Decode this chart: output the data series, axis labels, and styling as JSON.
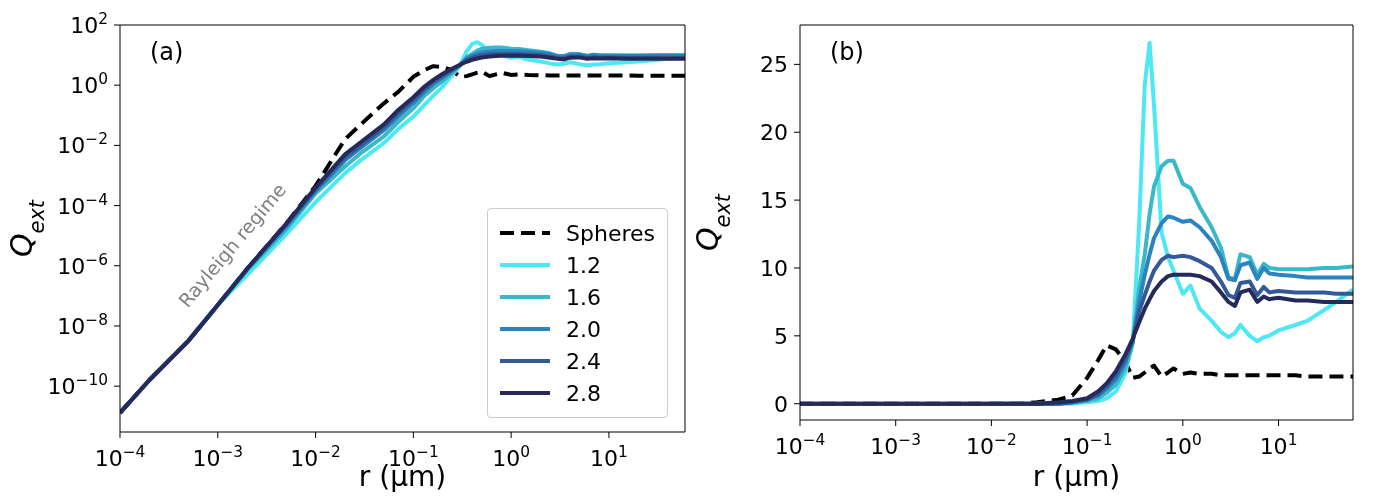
{
  "chart_data": [
    {
      "type": "line",
      "xlabel": "r (μm)",
      "ylabel": "Q$_{ext}$",
      "annotations": [
        "(a)",
        "Rayleigh regime"
      ],
      "log": "xy",
      "legend": "bottom right",
      "x": [
        0.0001,
        0.0002,
        0.0005,
        0.001,
        0.002,
        0.005,
        0.01,
        0.02,
        0.03,
        0.05,
        0.07,
        0.1,
        0.13,
        0.16,
        0.2,
        0.25,
        0.3,
        0.35,
        0.4,
        0.45,
        0.5,
        0.6,
        0.7,
        0.8,
        1,
        1.2,
        1.5,
        2,
        2.5,
        3,
        3.5,
        4,
        5,
        6,
        7,
        8,
        10,
        15,
        20,
        30,
        40,
        60
      ],
      "series": [
        {
          "name": "Spheres",
          "color": "#000000",
          "line_style": "dashed",
          "values": [
            1.3e-11,
            1.6e-10,
            3.2e-09,
            5e-08,
            8e-07,
            2.5e-05,
            0.00045,
            0.016,
            0.055,
            0.25,
            0.6,
            1.9,
            3.2,
            4.3,
            3.95,
            3.1,
            1.9,
            2.0,
            2.3,
            2.6,
            2.8,
            2.0,
            2.3,
            2.6,
            2.2,
            2.3,
            2.2,
            2.15,
            2.1,
            2.1,
            2.1,
            2.1,
            2.1,
            2.1,
            2.1,
            2.1,
            2.1,
            2.1,
            2.05,
            2.05,
            2.05,
            2.05
          ]
        },
        {
          "name": "1.2",
          "color": "#4de8f4",
          "values": [
            null,
            null,
            3.2e-09,
            5e-08,
            5e-07,
            1.1e-05,
            0.00013,
            0.0012,
            0.0035,
            0.012,
            0.035,
            0.09,
            0.22,
            0.45,
            0.9,
            2.2,
            4.5,
            13.3,
            23.5,
            26.6,
            22.0,
            12.6,
            10.8,
            9.8,
            8.1,
            8.7,
            7.0,
            6.1,
            5.3,
            4.9,
            5.2,
            5.8,
            5.0,
            4.6,
            4.9,
            5.0,
            5.4,
            5.8,
            6.1,
            6.9,
            7.5,
            8.4
          ]
        },
        {
          "name": "1.6",
          "color": "#3bb8c8",
          "values": [
            1.3e-11,
            1.6e-10,
            3.2e-09,
            5e-08,
            7e-07,
            1.6e-05,
            0.00025,
            0.002,
            0.006,
            0.02,
            0.06,
            0.17,
            0.45,
            0.8,
            1.4,
            2.6,
            4.5,
            8.5,
            11.0,
            14.0,
            16.0,
            17.5,
            17.9,
            17.9,
            16.2,
            15.9,
            14.5,
            13.0,
            11.5,
            9.3,
            9.2,
            11.0,
            10.8,
            9.5,
            10.3,
            10.0,
            9.9,
            9.9,
            9.9,
            10.0,
            10.0,
            10.1
          ]
        },
        {
          "name": "2.0",
          "color": "#2a84c0",
          "values": [
            1.3e-11,
            1.6e-10,
            3.2e-09,
            5e-08,
            8e-07,
            2e-05,
            0.0003,
            0.0032,
            0.009,
            0.032,
            0.09,
            0.26,
            0.6,
            1.1,
            1.8,
            3.0,
            4.6,
            7.5,
            9.5,
            11.0,
            12.2,
            13.3,
            13.8,
            13.7,
            13.4,
            13.5,
            13.0,
            12.0,
            10.8,
            9.2,
            9.1,
            10.2,
            10.4,
            9.2,
            10.0,
            9.6,
            9.5,
            9.4,
            9.3,
            9.3,
            9.3,
            9.3
          ]
        },
        {
          "name": "2.4",
          "color": "#345996",
          "values": [
            1.3e-11,
            1.6e-10,
            3.2e-09,
            5e-08,
            8e-07,
            2.3e-05,
            0.00035,
            0.004,
            0.011,
            0.04,
            0.12,
            0.33,
            0.75,
            1.3,
            2.1,
            3.3,
            4.7,
            6.8,
            8.0,
            9.0,
            9.8,
            10.6,
            10.9,
            10.8,
            10.9,
            10.8,
            10.5,
            10.0,
            9.0,
            8.0,
            7.8,
            8.9,
            9.0,
            8.0,
            8.6,
            8.2,
            8.3,
            8.2,
            8.2,
            8.2,
            8.1,
            8.1
          ]
        },
        {
          "name": "2.8",
          "color": "#262a5a",
          "values": [
            1.3e-11,
            1.6e-10,
            3.2e-09,
            5e-08,
            8e-07,
            2.5e-05,
            0.0004,
            0.005,
            0.014,
            0.05,
            0.15,
            0.4,
            0.9,
            1.5,
            2.4,
            3.6,
            4.8,
            6.0,
            7.0,
            7.7,
            8.3,
            9.0,
            9.4,
            9.5,
            9.5,
            9.5,
            9.4,
            9.0,
            8.2,
            7.5,
            7.2,
            8.2,
            8.4,
            7.5,
            7.9,
            7.7,
            7.8,
            7.6,
            7.6,
            7.5,
            7.5,
            7.5
          ]
        }
      ],
      "xlim": [
        0.0001,
        60
      ],
      "ylim": [
        3e-12,
        100
      ],
      "xticks": [
        {
          "value": 0.0001,
          "label": "10$^{−4}$"
        },
        {
          "value": 0.001,
          "label": "10$^{−3}$"
        },
        {
          "value": 0.01,
          "label": "10$^{−2}$"
        },
        {
          "value": 0.1,
          "label": "10$^{−1}$"
        },
        {
          "value": 1,
          "label": "10$^{0}$"
        },
        {
          "value": 10,
          "label": "10$^{1}$"
        }
      ],
      "yticks": [
        {
          "value": 1e-10,
          "label": "10$^{−10}$"
        },
        {
          "value": 1e-08,
          "label": "10$^{−8}$"
        },
        {
          "value": 1e-06,
          "label": "10$^{−6}$"
        },
        {
          "value": 0.0001,
          "label": "10$^{−4}$"
        },
        {
          "value": 0.01,
          "label": "10$^{−2}$"
        },
        {
          "value": 1,
          "label": "10$^{0}$"
        },
        {
          "value": 100,
          "label": "10$^{2}$"
        }
      ]
    },
    {
      "type": "line",
      "xlabel": "r (μm)",
      "ylabel": "Q$_{ext}$",
      "annotations": [
        "(b)"
      ],
      "log": "x",
      "x": [
        0.0001,
        0.0002,
        0.0005,
        0.001,
        0.002,
        0.005,
        0.01,
        0.02,
        0.03,
        0.05,
        0.07,
        0.1,
        0.13,
        0.16,
        0.2,
        0.25,
        0.3,
        0.35,
        0.4,
        0.45,
        0.5,
        0.6,
        0.7,
        0.8,
        1,
        1.2,
        1.5,
        2,
        2.5,
        3,
        3.5,
        4,
        5,
        6,
        7,
        8,
        10,
        15,
        20,
        30,
        40,
        60
      ],
      "series": [
        {
          "color": "#000000",
          "line_style": "dashed",
          "values": [
            0,
            0,
            0,
            0,
            0,
            0,
            0,
            0,
            0.1,
            0.3,
            0.6,
            1.9,
            3.2,
            4.3,
            4.0,
            3.1,
            1.9,
            2.0,
            2.3,
            2.6,
            2.8,
            2.0,
            2.3,
            2.6,
            2.2,
            2.3,
            2.2,
            2.2,
            2.1,
            2.1,
            2.1,
            2.1,
            2.1,
            2.1,
            2.1,
            2.1,
            2.1,
            2.1,
            2.0,
            2.0,
            2.0,
            2.0
          ]
        },
        {
          "color": "#4de8f4",
          "values": [
            null,
            null,
            null,
            null,
            null,
            null,
            null,
            null,
            0,
            0,
            0,
            0.1,
            0.2,
            0.4,
            0.9,
            2.2,
            4.5,
            13.3,
            23.5,
            26.6,
            22.0,
            12.6,
            10.8,
            9.8,
            8.1,
            8.7,
            7.0,
            6.1,
            5.3,
            4.9,
            5.2,
            5.8,
            5.0,
            4.6,
            4.9,
            5.0,
            5.4,
            5.8,
            6.1,
            6.9,
            7.5,
            8.4
          ]
        },
        {
          "color": "#3bb8c8",
          "values": [
            null,
            null,
            null,
            null,
            null,
            null,
            null,
            null,
            0,
            0,
            0.1,
            0.2,
            0.4,
            0.8,
            1.4,
            2.6,
            4.5,
            8.5,
            11.0,
            14.0,
            16.0,
            17.5,
            17.9,
            17.9,
            16.2,
            15.9,
            14.5,
            13.0,
            11.5,
            9.3,
            9.2,
            11.0,
            10.8,
            9.5,
            10.3,
            10.0,
            9.9,
            9.9,
            9.9,
            10.0,
            10.0,
            10.1
          ]
        },
        {
          "color": "#2a84c0",
          "values": [
            null,
            null,
            null,
            null,
            null,
            null,
            0,
            0,
            0,
            0,
            0.1,
            0.3,
            0.6,
            1.1,
            1.8,
            3.0,
            4.6,
            7.5,
            9.5,
            11.0,
            12.2,
            13.3,
            13.8,
            13.7,
            13.4,
            13.5,
            13.0,
            12.0,
            10.8,
            9.2,
            9.1,
            10.2,
            10.4,
            9.2,
            10.0,
            9.6,
            9.5,
            9.4,
            9.3,
            9.3,
            9.3,
            9.3
          ]
        },
        {
          "color": "#345996",
          "values": [
            0,
            0,
            0,
            0,
            0,
            0,
            0,
            0,
            0,
            0,
            0.1,
            0.3,
            0.7,
            1.3,
            2.1,
            3.3,
            4.7,
            6.8,
            8.0,
            9.0,
            9.8,
            10.6,
            10.9,
            10.8,
            10.9,
            10.8,
            10.5,
            10.0,
            9.0,
            8.0,
            7.8,
            8.9,
            9.0,
            8.0,
            8.6,
            8.2,
            8.3,
            8.2,
            8.2,
            8.2,
            8.1,
            8.1
          ]
        },
        {
          "color": "#262a5a",
          "values": [
            0,
            0,
            0,
            0,
            0,
            0,
            0,
            0,
            0,
            0.1,
            0.2,
            0.4,
            0.9,
            1.5,
            2.4,
            3.6,
            4.8,
            6.0,
            7.0,
            7.7,
            8.3,
            9.0,
            9.4,
            9.5,
            9.5,
            9.5,
            9.4,
            9.0,
            8.2,
            7.5,
            7.2,
            8.2,
            8.4,
            7.5,
            7.9,
            7.7,
            7.8,
            7.6,
            7.6,
            7.5,
            7.5,
            7.5
          ]
        }
      ],
      "xlim": [
        0.0001,
        60
      ],
      "ylim": [
        -1.2,
        27.9
      ],
      "xticks": [
        {
          "value": 0.0001,
          "label": "10$^{−4}$"
        },
        {
          "value": 0.001,
          "label": "10$^{−3}$"
        },
        {
          "value": 0.01,
          "label": "10$^{−2}$"
        },
        {
          "value": 0.1,
          "label": "10$^{−1}$"
        },
        {
          "value": 1,
          "label": "10$^{0}$"
        },
        {
          "value": 10,
          "label": "10$^{1}$"
        }
      ],
      "yticks": [
        0,
        5,
        10,
        15,
        20,
        25
      ]
    }
  ]
}
